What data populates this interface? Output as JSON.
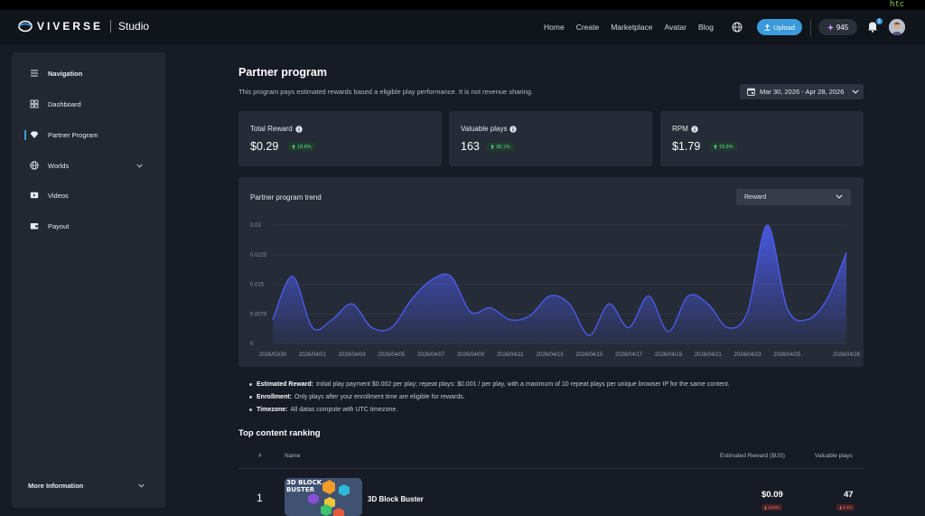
{
  "topbar": {
    "vendor": "htc"
  },
  "header": {
    "brand": "VIVERSE",
    "product": "Studio",
    "nav": [
      "Home",
      "Create",
      "Marketplace",
      "Avatar",
      "Blog"
    ],
    "upload_label": "Upload",
    "points": "945",
    "notification_count": "1"
  },
  "sidebar": {
    "items": [
      {
        "label": "Navigation",
        "icon": "menu-icon"
      },
      {
        "label": "Dashboard",
        "icon": "dashboard-icon"
      },
      {
        "label": "Partner Program",
        "icon": "diamond-icon"
      },
      {
        "label": "Worlds",
        "icon": "globe-icon"
      },
      {
        "label": "Videos",
        "icon": "video-icon"
      },
      {
        "label": "Payout",
        "icon": "wallet-icon"
      }
    ],
    "active": "Partner Program",
    "footer_label": "More Information"
  },
  "page": {
    "title": "Partner program",
    "description": "This program pays estimated rewards based a eligible play performance. It is not revenue sharing.",
    "date_range": "Mar 30, 2026 - Apr 28, 2026"
  },
  "stats": [
    {
      "label": "Total Reward",
      "value": "$0.29",
      "change": "18.8%"
    },
    {
      "label": "Valuable plays",
      "value": "163",
      "change": "38.1%"
    },
    {
      "label": "RPM",
      "value": "$1.79",
      "change": "18.8%"
    }
  ],
  "trend": {
    "title": "Partner program trend",
    "metric_selected": "Reward"
  },
  "chart_data": {
    "type": "area",
    "title": "Partner program trend",
    "ylim": [
      0,
      0.03
    ],
    "yticks": [
      "0",
      "0.0075",
      "0.015",
      "0.0225",
      "0.03"
    ],
    "xticks": [
      "2026/03/30",
      "2026/04/01",
      "2026/04/03",
      "2026/04/05",
      "2026/04/07",
      "2026/04/09",
      "2026/04/11",
      "2026/04/13",
      "2026/04/15",
      "2026/04/17",
      "2026/04/19",
      "2026/04/21",
      "2026/04/23",
      "2026/04/25",
      "2026/04/28"
    ],
    "x": [
      "2026/03/30",
      "2026/03/31",
      "2026/04/01",
      "2026/04/02",
      "2026/04/03",
      "2026/04/04",
      "2026/04/05",
      "2026/04/06",
      "2026/04/07",
      "2026/04/08",
      "2026/04/09",
      "2026/04/10",
      "2026/04/11",
      "2026/04/12",
      "2026/04/13",
      "2026/04/14",
      "2026/04/15",
      "2026/04/16",
      "2026/04/17",
      "2026/04/18",
      "2026/04/19",
      "2026/04/20",
      "2026/04/21",
      "2026/04/22",
      "2026/04/23",
      "2026/04/24",
      "2026/04/25",
      "2026/04/26",
      "2026/04/27",
      "2026/04/28"
    ],
    "values": [
      0.006,
      0.017,
      0.004,
      0.006,
      0.01,
      0.004,
      0.004,
      0.011,
      0.016,
      0.017,
      0.008,
      0.009,
      0.006,
      0.007,
      0.012,
      0.01,
      0.002,
      0.01,
      0.004,
      0.012,
      0.003,
      0.012,
      0.01,
      0.004,
      0.008,
      0.03,
      0.009,
      0.006,
      0.011,
      0.023
    ],
    "grid": true,
    "color": "#4a5ae8"
  },
  "notes": [
    {
      "term": "Estimated Reward:",
      "text": "Initial play payment $0.002 per play; repeat plays: $0.001 / per play, with a maximum of 10 repeat plays per unique browser IP for the same content."
    },
    {
      "term": "Enrollment:",
      "text": "Only plays after your enrollment time are eligible for rewards."
    },
    {
      "term": "Timezone:",
      "text": "All datas compute with UTC timezone."
    }
  ],
  "ranking": {
    "title": "Top content ranking",
    "columns": [
      "#",
      "Name",
      "Estimated Reward ($US)",
      "Valuable plays"
    ],
    "rows": [
      {
        "rank": "1",
        "thumb_text": "3D BLOCK BUSTER",
        "name": "3D Block Buster",
        "reward": "$0.09",
        "reward_change": "12.5%",
        "plays": "47",
        "plays_change": "2.1%"
      }
    ]
  }
}
